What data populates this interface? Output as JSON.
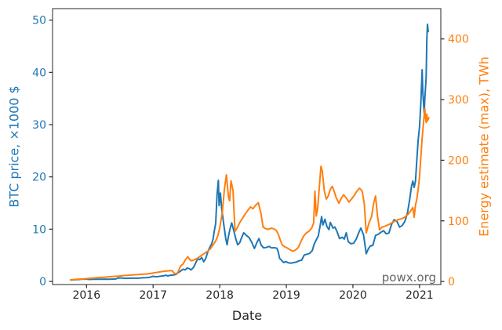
{
  "chart_data": {
    "type": "line",
    "title": "",
    "xlabel": "Date",
    "ylabel_left": "BTC price, ×1000 $",
    "ylabel_right": "Energy estimate (max), TWh",
    "watermark": "powx.org",
    "grid": false,
    "legend_position": "none",
    "xlim": [
      2015.49,
      2021.32
    ],
    "ylim_left": [
      -0.6,
      52.2
    ],
    "ylim_right": [
      -5,
      450
    ],
    "x_ticks": [
      2016,
      2017,
      2018,
      2019,
      2020,
      2021
    ],
    "y_ticks_left": [
      0,
      10,
      20,
      30,
      40,
      50
    ],
    "y_ticks_right": [
      0,
      100,
      200,
      300,
      400
    ],
    "colors": {
      "btc_line": "#1f77b4",
      "energy_line": "#ff7f0e",
      "axis": "#262626",
      "watermark": "#666666"
    },
    "series": [
      {
        "name": "BTC price",
        "axis": "left",
        "unit": "×1000 $",
        "color": "#1f77b4",
        "points": [
          [
            2015.76,
            0.27
          ],
          [
            2015.82,
            0.31
          ],
          [
            2015.88,
            0.36
          ],
          [
            2015.93,
            0.43
          ],
          [
            2016.0,
            0.43
          ],
          [
            2016.05,
            0.38
          ],
          [
            2016.1,
            0.41
          ],
          [
            2016.16,
            0.42
          ],
          [
            2016.22,
            0.42
          ],
          [
            2016.28,
            0.44
          ],
          [
            2016.34,
            0.42
          ],
          [
            2016.4,
            0.45
          ],
          [
            2016.44,
            0.46
          ],
          [
            2016.47,
            0.66
          ],
          [
            2016.51,
            0.68
          ],
          [
            2016.55,
            0.61
          ],
          [
            2016.6,
            0.59
          ],
          [
            2016.66,
            0.61
          ],
          [
            2016.72,
            0.61
          ],
          [
            2016.78,
            0.62
          ],
          [
            2016.84,
            0.69
          ],
          [
            2016.9,
            0.72
          ],
          [
            2016.95,
            0.79
          ],
          [
            2017.0,
            0.97
          ],
          [
            2017.04,
            0.89
          ],
          [
            2017.08,
            0.93
          ],
          [
            2017.12,
            1.0
          ],
          [
            2017.16,
            1.06
          ],
          [
            2017.19,
            1.19
          ],
          [
            2017.22,
            1.05
          ],
          [
            2017.26,
            1.19
          ],
          [
            2017.3,
            1.21
          ],
          [
            2017.34,
            1.34
          ],
          [
            2017.38,
            1.7
          ],
          [
            2017.42,
            2.05
          ],
          [
            2017.45,
            2.32
          ],
          [
            2017.48,
            2.21
          ],
          [
            2017.51,
            2.55
          ],
          [
            2017.54,
            2.45
          ],
          [
            2017.57,
            2.2
          ],
          [
            2017.61,
            2.75
          ],
          [
            2017.64,
            3.55
          ],
          [
            2017.67,
            4.35
          ],
          [
            2017.7,
            4.15
          ],
          [
            2017.73,
            4.58
          ],
          [
            2017.76,
            3.75
          ],
          [
            2017.79,
            4.4
          ],
          [
            2017.82,
            5.6
          ],
          [
            2017.85,
            6.5
          ],
          [
            2017.88,
            7.2
          ],
          [
            2017.9,
            8.1
          ],
          [
            2017.92,
            9.7
          ],
          [
            2017.94,
            11.1
          ],
          [
            2017.96,
            16.6
          ],
          [
            2017.98,
            19.35
          ],
          [
            2017.99,
            14.5
          ],
          [
            2018.01,
            16.9
          ],
          [
            2018.03,
            13.8
          ],
          [
            2018.06,
            11.0
          ],
          [
            2018.09,
            8.2
          ],
          [
            2018.11,
            7.0
          ],
          [
            2018.13,
            8.6
          ],
          [
            2018.16,
            10.3
          ],
          [
            2018.18,
            11.2
          ],
          [
            2018.21,
            9.8
          ],
          [
            2018.24,
            8.2
          ],
          [
            2018.27,
            7.0
          ],
          [
            2018.3,
            7.4
          ],
          [
            2018.33,
            8.4
          ],
          [
            2018.36,
            9.3
          ],
          [
            2018.4,
            8.8
          ],
          [
            2018.44,
            8.4
          ],
          [
            2018.48,
            7.5
          ],
          [
            2018.52,
            6.3
          ],
          [
            2018.56,
            7.5
          ],
          [
            2018.59,
            8.2
          ],
          [
            2018.62,
            7.0
          ],
          [
            2018.66,
            6.4
          ],
          [
            2018.7,
            6.5
          ],
          [
            2018.74,
            6.7
          ],
          [
            2018.78,
            6.4
          ],
          [
            2018.82,
            6.45
          ],
          [
            2018.86,
            6.35
          ],
          [
            2018.88,
            5.6
          ],
          [
            2018.9,
            4.4
          ],
          [
            2018.93,
            4.0
          ],
          [
            2018.96,
            3.6
          ],
          [
            2018.99,
            3.8
          ],
          [
            2019.03,
            3.55
          ],
          [
            2019.07,
            3.5
          ],
          [
            2019.11,
            3.6
          ],
          [
            2019.15,
            3.7
          ],
          [
            2019.19,
            3.95
          ],
          [
            2019.23,
            4.05
          ],
          [
            2019.27,
            5.05
          ],
          [
            2019.31,
            5.2
          ],
          [
            2019.35,
            5.35
          ],
          [
            2019.39,
            5.9
          ],
          [
            2019.42,
            7.2
          ],
          [
            2019.45,
            7.95
          ],
          [
            2019.48,
            8.7
          ],
          [
            2019.51,
            10.8
          ],
          [
            2019.53,
            12.4
          ],
          [
            2019.55,
            10.8
          ],
          [
            2019.58,
            11.9
          ],
          [
            2019.61,
            10.5
          ],
          [
            2019.64,
            9.9
          ],
          [
            2019.66,
            11.3
          ],
          [
            2019.7,
            10.2
          ],
          [
            2019.73,
            10.4
          ],
          [
            2019.76,
            9.6
          ],
          [
            2019.8,
            8.2
          ],
          [
            2019.84,
            8.45
          ],
          [
            2019.87,
            8.1
          ],
          [
            2019.9,
            9.3
          ],
          [
            2019.93,
            7.6
          ],
          [
            2019.97,
            7.2
          ],
          [
            2020.01,
            7.3
          ],
          [
            2020.05,
            8.1
          ],
          [
            2020.09,
            9.4
          ],
          [
            2020.12,
            10.2
          ],
          [
            2020.16,
            8.9
          ],
          [
            2020.2,
            5.3
          ],
          [
            2020.23,
            6.2
          ],
          [
            2020.26,
            6.75
          ],
          [
            2020.3,
            6.9
          ],
          [
            2020.34,
            8.8
          ],
          [
            2020.38,
            9.0
          ],
          [
            2020.42,
            9.4
          ],
          [
            2020.46,
            9.7
          ],
          [
            2020.5,
            9.1
          ],
          [
            2020.54,
            9.25
          ],
          [
            2020.58,
            10.9
          ],
          [
            2020.62,
            11.8
          ],
          [
            2020.66,
            11.5
          ],
          [
            2020.7,
            10.4
          ],
          [
            2020.74,
            10.7
          ],
          [
            2020.78,
            11.5
          ],
          [
            2020.82,
            13.1
          ],
          [
            2020.85,
            15.5
          ],
          [
            2020.88,
            18.2
          ],
          [
            2020.9,
            19.2
          ],
          [
            2020.92,
            18.0
          ],
          [
            2020.94,
            19.2
          ],
          [
            2020.96,
            23.2
          ],
          [
            2020.98,
            27.0
          ],
          [
            2021.0,
            29.5
          ],
          [
            2021.02,
            34.0
          ],
          [
            2021.04,
            40.5
          ],
          [
            2021.05,
            36.0
          ],
          [
            2021.07,
            32.2
          ],
          [
            2021.08,
            35.0
          ],
          [
            2021.1,
            39.0
          ],
          [
            2021.11,
            46.5
          ],
          [
            2021.12,
            49.2
          ],
          [
            2021.13,
            47.8
          ]
        ]
      },
      {
        "name": "Energy estimate (max)",
        "axis": "right",
        "unit": "TWh",
        "color": "#ff7f0e",
        "points": [
          [
            2015.76,
            2.8
          ],
          [
            2015.85,
            3.5
          ],
          [
            2015.94,
            4.2
          ],
          [
            2016.03,
            5.0
          ],
          [
            2016.12,
            5.8
          ],
          [
            2016.21,
            6.6
          ],
          [
            2016.3,
            7.4
          ],
          [
            2016.39,
            8.2
          ],
          [
            2016.48,
            9.0
          ],
          [
            2016.55,
            9.7
          ],
          [
            2016.62,
            10.3
          ],
          [
            2016.69,
            10.8
          ],
          [
            2016.76,
            11.3
          ],
          [
            2016.83,
            11.9
          ],
          [
            2016.9,
            12.5
          ],
          [
            2016.97,
            13.5
          ],
          [
            2017.04,
            14.6
          ],
          [
            2017.1,
            15.8
          ],
          [
            2017.16,
            16.8
          ],
          [
            2017.22,
            17.5
          ],
          [
            2017.28,
            18.2
          ],
          [
            2017.33,
            12.5
          ],
          [
            2017.37,
            14.5
          ],
          [
            2017.41,
            25.0
          ],
          [
            2017.45,
            29.0
          ],
          [
            2017.48,
            35.0
          ],
          [
            2017.52,
            41.0
          ],
          [
            2017.55,
            36.0
          ],
          [
            2017.58,
            34.0
          ],
          [
            2017.62,
            36.0
          ],
          [
            2017.66,
            38.0
          ],
          [
            2017.7,
            41.0
          ],
          [
            2017.74,
            44.0
          ],
          [
            2017.78,
            47.0
          ],
          [
            2017.82,
            50.0
          ],
          [
            2017.86,
            54.0
          ],
          [
            2017.9,
            60.0
          ],
          [
            2017.94,
            67.0
          ],
          [
            2017.97,
            75.0
          ],
          [
            2018.0,
            88.0
          ],
          [
            2018.04,
            115.0
          ],
          [
            2018.07,
            152.0
          ],
          [
            2018.1,
            176.0
          ],
          [
            2018.13,
            140.0
          ],
          [
            2018.15,
            133.0
          ],
          [
            2018.17,
            166.0
          ],
          [
            2018.2,
            150.0
          ],
          [
            2018.23,
            83.0
          ],
          [
            2018.26,
            88.0
          ],
          [
            2018.3,
            97.0
          ],
          [
            2018.34,
            104.0
          ],
          [
            2018.38,
            111.0
          ],
          [
            2018.42,
            117.0
          ],
          [
            2018.46,
            123.0
          ],
          [
            2018.5,
            120.0
          ],
          [
            2018.54,
            126.0
          ],
          [
            2018.58,
            130.0
          ],
          [
            2018.62,
            112.0
          ],
          [
            2018.65,
            90.0
          ],
          [
            2018.69,
            87.0
          ],
          [
            2018.73,
            86.0
          ],
          [
            2018.77,
            88.0
          ],
          [
            2018.81,
            87.0
          ],
          [
            2018.85,
            84.0
          ],
          [
            2018.88,
            78.0
          ],
          [
            2018.91,
            68.0
          ],
          [
            2018.94,
            60.0
          ],
          [
            2018.98,
            57.0
          ],
          [
            2019.02,
            55.0
          ],
          [
            2019.06,
            52.0
          ],
          [
            2019.1,
            50.0
          ],
          [
            2019.14,
            52.0
          ],
          [
            2019.18,
            56.0
          ],
          [
            2019.22,
            66.0
          ],
          [
            2019.26,
            75.0
          ],
          [
            2019.3,
            80.0
          ],
          [
            2019.34,
            83.0
          ],
          [
            2019.38,
            88.0
          ],
          [
            2019.41,
            96.0
          ],
          [
            2019.43,
            149.0
          ],
          [
            2019.45,
            108.0
          ],
          [
            2019.47,
            120.0
          ],
          [
            2019.5,
            162.0
          ],
          [
            2019.52,
            190.0
          ],
          [
            2019.54,
            182.0
          ],
          [
            2019.57,
            150.0
          ],
          [
            2019.6,
            136.0
          ],
          [
            2019.63,
            141.0
          ],
          [
            2019.66,
            152.0
          ],
          [
            2019.69,
            157.0
          ],
          [
            2019.72,
            148.0
          ],
          [
            2019.75,
            138.0
          ],
          [
            2019.79,
            129.0
          ],
          [
            2019.82,
            136.0
          ],
          [
            2019.86,
            143.0
          ],
          [
            2019.9,
            138.0
          ],
          [
            2019.94,
            131.0
          ],
          [
            2019.98,
            136.0
          ],
          [
            2020.02,
            142.0
          ],
          [
            2020.06,
            149.0
          ],
          [
            2020.1,
            154.0
          ],
          [
            2020.14,
            149.0
          ],
          [
            2020.17,
            128.0
          ],
          [
            2020.2,
            80.0
          ],
          [
            2020.24,
            96.0
          ],
          [
            2020.28,
            107.0
          ],
          [
            2020.31,
            128.0
          ],
          [
            2020.34,
            141.0
          ],
          [
            2020.37,
            108.0
          ],
          [
            2020.4,
            85.0
          ],
          [
            2020.44,
            90.0
          ],
          [
            2020.48,
            91.0
          ],
          [
            2020.52,
            93.0
          ],
          [
            2020.56,
            95.0
          ],
          [
            2020.6,
            98.0
          ],
          [
            2020.64,
            100.0
          ],
          [
            2020.68,
            102.0
          ],
          [
            2020.72,
            103.0
          ],
          [
            2020.76,
            105.0
          ],
          [
            2020.8,
            108.0
          ],
          [
            2020.84,
            112.0
          ],
          [
            2020.87,
            117.0
          ],
          [
            2020.9,
            122.0
          ],
          [
            2020.92,
            106.0
          ],
          [
            2020.94,
            126.0
          ],
          [
            2020.96,
            136.0
          ],
          [
            2020.98,
            152.0
          ],
          [
            2021.0,
            172.0
          ],
          [
            2021.02,
            205.0
          ],
          [
            2021.04,
            236.0
          ],
          [
            2021.06,
            262.0
          ],
          [
            2021.08,
            285.0
          ],
          [
            2021.09,
            270.0
          ],
          [
            2021.1,
            262.0
          ],
          [
            2021.11,
            276.0
          ],
          [
            2021.12,
            265.0
          ],
          [
            2021.14,
            270.0
          ]
        ]
      }
    ]
  }
}
